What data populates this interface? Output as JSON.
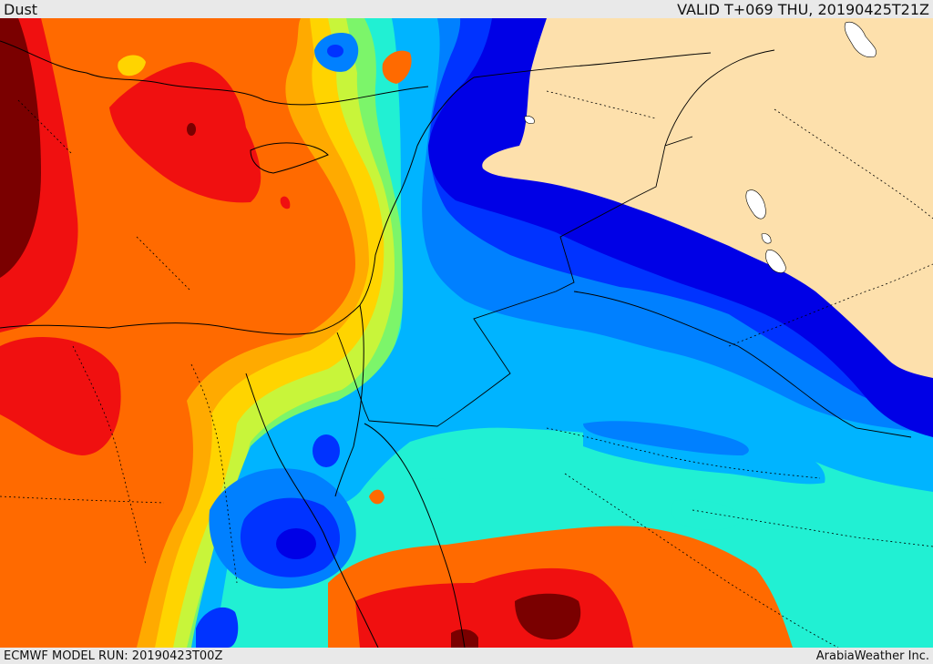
{
  "header": {
    "title": "Dust",
    "valid": "VALID T+069 THU, 20190425T21Z"
  },
  "footer": {
    "model_run": "ECMWF MODEL RUN: 20190423T00Z",
    "brand": "ArabiaWeather Inc."
  },
  "palette": {
    "land_no_data": "#fde0ac",
    "level_1": "#0000e6",
    "level_2": "#0033ff",
    "level_3": "#0080ff",
    "level_4": "#00b4ff",
    "level_5": "#21f0d3",
    "level_6": "#7cf56a",
    "level_7": "#c8f53a",
    "level_8": "#ffd400",
    "level_9": "#ffaa00",
    "level_10": "#ff6a00",
    "level_11": "#f01010",
    "level_12": "#7a0000",
    "water_bodies": "#ffffff",
    "borders": "#000000"
  }
}
